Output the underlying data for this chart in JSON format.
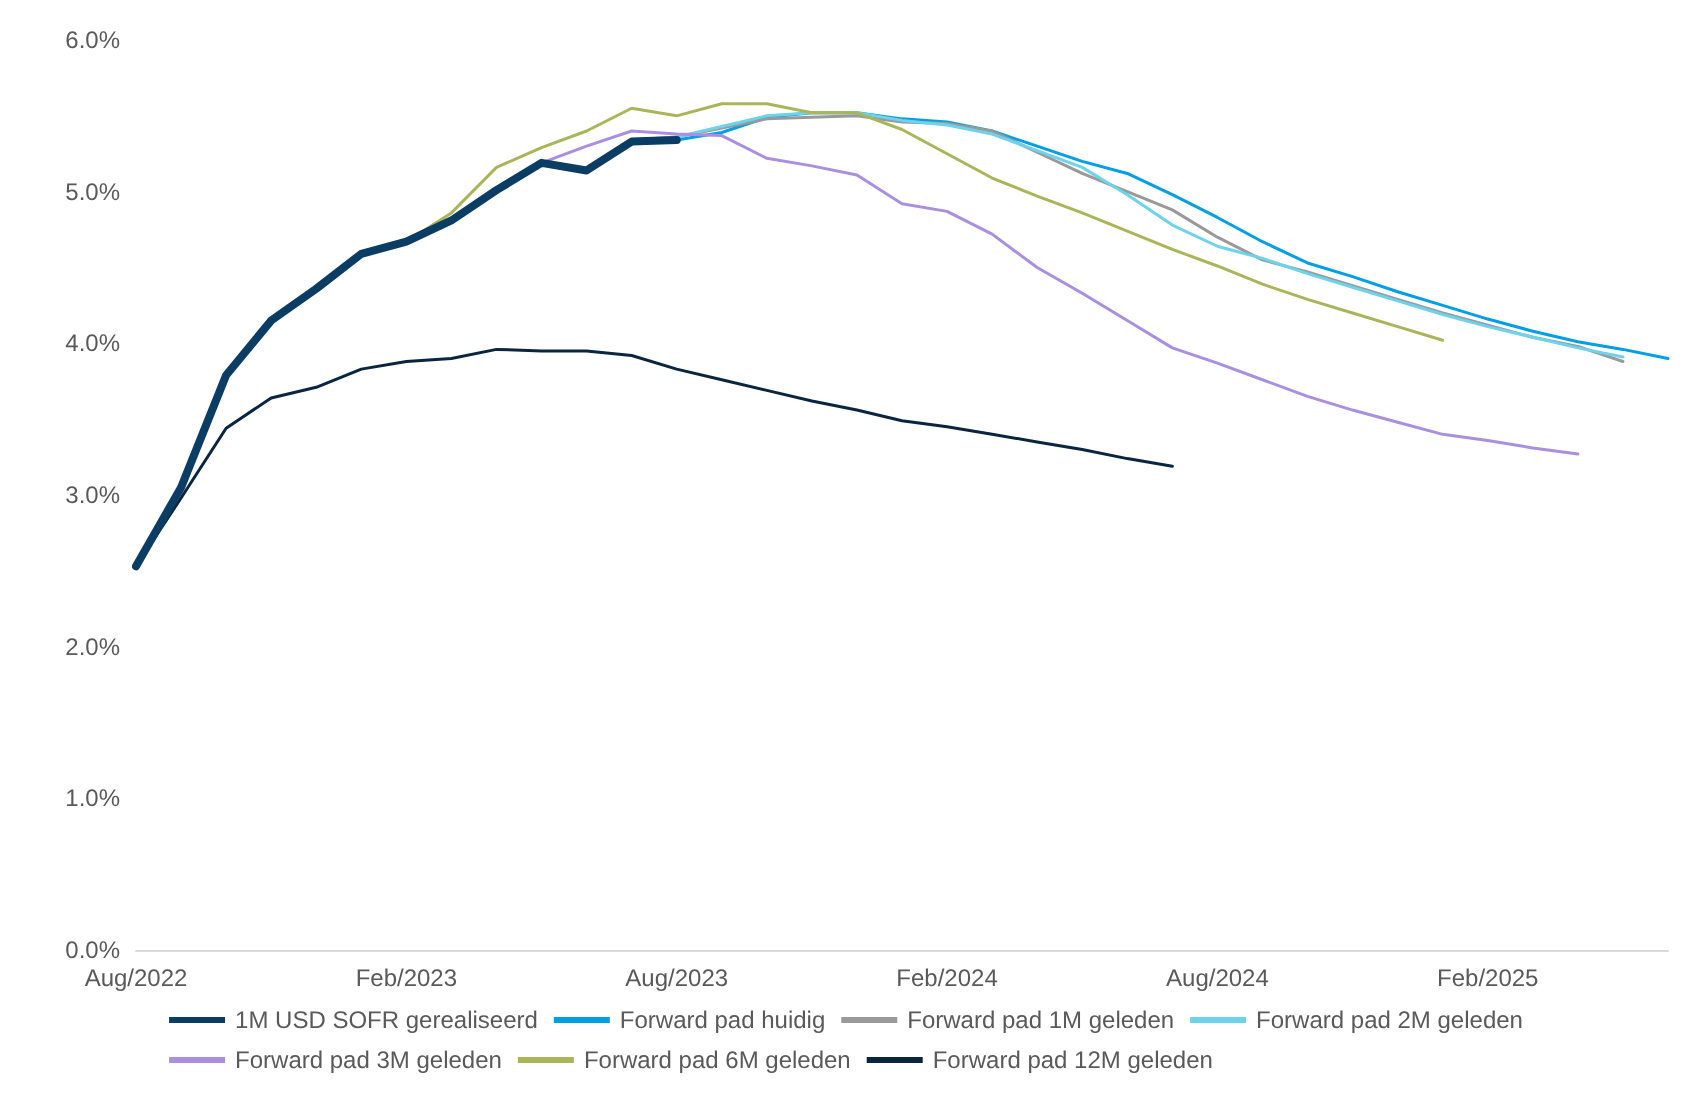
{
  "chart_data": {
    "type": "line",
    "categories": [
      "Aug/2022",
      null,
      null,
      null,
      null,
      null,
      "Feb/2023",
      null,
      null,
      null,
      null,
      null,
      "Aug/2023",
      null,
      null,
      null,
      null,
      null,
      "Feb/2024",
      null,
      null,
      null,
      null,
      null,
      "Aug/2024",
      null,
      null,
      null,
      null,
      null,
      "Feb/2025",
      null,
      null,
      null,
      null
    ],
    "ylim": [
      0,
      6
    ],
    "yticks": [
      {
        "value": 0,
        "label": "0.0%"
      },
      {
        "value": 1,
        "label": "1.0%"
      },
      {
        "value": 2,
        "label": "2.0%"
      },
      {
        "value": 3,
        "label": "3.0%"
      },
      {
        "value": 4,
        "label": "4.0%"
      },
      {
        "value": 5,
        "label": "5.0%"
      },
      {
        "value": 6,
        "label": "6.0%"
      }
    ],
    "grid": false,
    "legend": "bottom",
    "marker": "none",
    "line_style": "solid",
    "series": [
      {
        "name": "1M USD SOFR gerealiseerd",
        "color": "#0b3c64",
        "values": [
          2.53,
          3.05,
          3.79,
          4.15,
          4.36,
          4.59,
          4.67,
          4.81,
          5.01,
          5.19,
          5.14,
          5.33,
          5.34,
          null,
          null,
          null,
          null,
          null,
          null,
          null,
          null,
          null,
          null,
          null,
          null,
          null,
          null,
          null,
          null,
          null,
          null,
          null,
          null,
          null,
          null
        ]
      },
      {
        "name": "Forward pad huidig",
        "color": "#009fe3",
        "values": [
          null,
          null,
          null,
          null,
          null,
          null,
          null,
          null,
          null,
          null,
          null,
          5.33,
          5.34,
          5.39,
          5.49,
          5.52,
          5.52,
          5.48,
          5.46,
          5.4,
          5.3,
          5.2,
          5.12,
          4.98,
          4.83,
          4.67,
          4.53,
          4.44,
          4.34,
          4.25,
          4.16,
          4.08,
          4.01,
          3.96,
          3.9
        ]
      },
      {
        "name": "Forward pad 1M geleden",
        "color": "#999999",
        "values": [
          null,
          null,
          null,
          null,
          null,
          null,
          null,
          null,
          null,
          null,
          null,
          5.34,
          5.36,
          5.42,
          5.48,
          5.49,
          5.5,
          5.46,
          5.45,
          5.4,
          5.26,
          5.12,
          5.0,
          4.88,
          4.7,
          4.55,
          4.47,
          4.38,
          4.29,
          4.2,
          4.12,
          4.04,
          3.98,
          3.88,
          null
        ]
      },
      {
        "name": "Forward pad 2M geleden",
        "color": "#6dd3ea",
        "values": [
          null,
          null,
          null,
          null,
          null,
          null,
          null,
          null,
          null,
          null,
          null,
          5.32,
          5.36,
          5.43,
          5.5,
          5.52,
          5.52,
          5.47,
          5.44,
          5.38,
          5.27,
          5.16,
          4.98,
          4.78,
          4.64,
          4.56,
          4.46,
          4.37,
          4.28,
          4.19,
          4.11,
          4.04,
          3.97,
          3.91,
          null
        ]
      },
      {
        "name": "Forward pad 3M geleden",
        "color": "#a98fe0",
        "values": [
          null,
          null,
          null,
          null,
          null,
          null,
          null,
          null,
          null,
          5.19,
          5.3,
          5.4,
          5.38,
          5.37,
          5.22,
          5.17,
          5.11,
          4.92,
          4.87,
          4.72,
          4.5,
          4.33,
          4.15,
          3.97,
          3.87,
          3.76,
          3.65,
          3.56,
          3.48,
          3.4,
          3.36,
          3.31,
          3.27,
          null,
          null
        ]
      },
      {
        "name": "Forward pad 6M geleden",
        "color": "#aab55a",
        "values": [
          null,
          null,
          null,
          null,
          null,
          null,
          4.67,
          4.86,
          5.16,
          5.29,
          5.4,
          5.55,
          5.5,
          5.58,
          5.58,
          5.52,
          5.52,
          5.41,
          5.25,
          5.09,
          4.97,
          4.86,
          4.74,
          4.62,
          4.51,
          4.39,
          4.29,
          4.2,
          4.11,
          4.02,
          null,
          null,
          null,
          null,
          null
        ]
      },
      {
        "name": "Forward pad 12M geleden",
        "color": "#0a2540",
        "values": [
          2.53,
          2.98,
          3.44,
          3.64,
          3.71,
          3.83,
          3.88,
          3.9,
          3.96,
          3.95,
          3.95,
          3.92,
          3.83,
          3.76,
          3.69,
          3.62,
          3.56,
          3.49,
          3.45,
          3.4,
          3.35,
          3.3,
          3.24,
          3.19,
          null,
          null,
          null,
          null,
          null,
          null,
          null,
          null,
          null,
          null,
          null
        ]
      }
    ]
  }
}
